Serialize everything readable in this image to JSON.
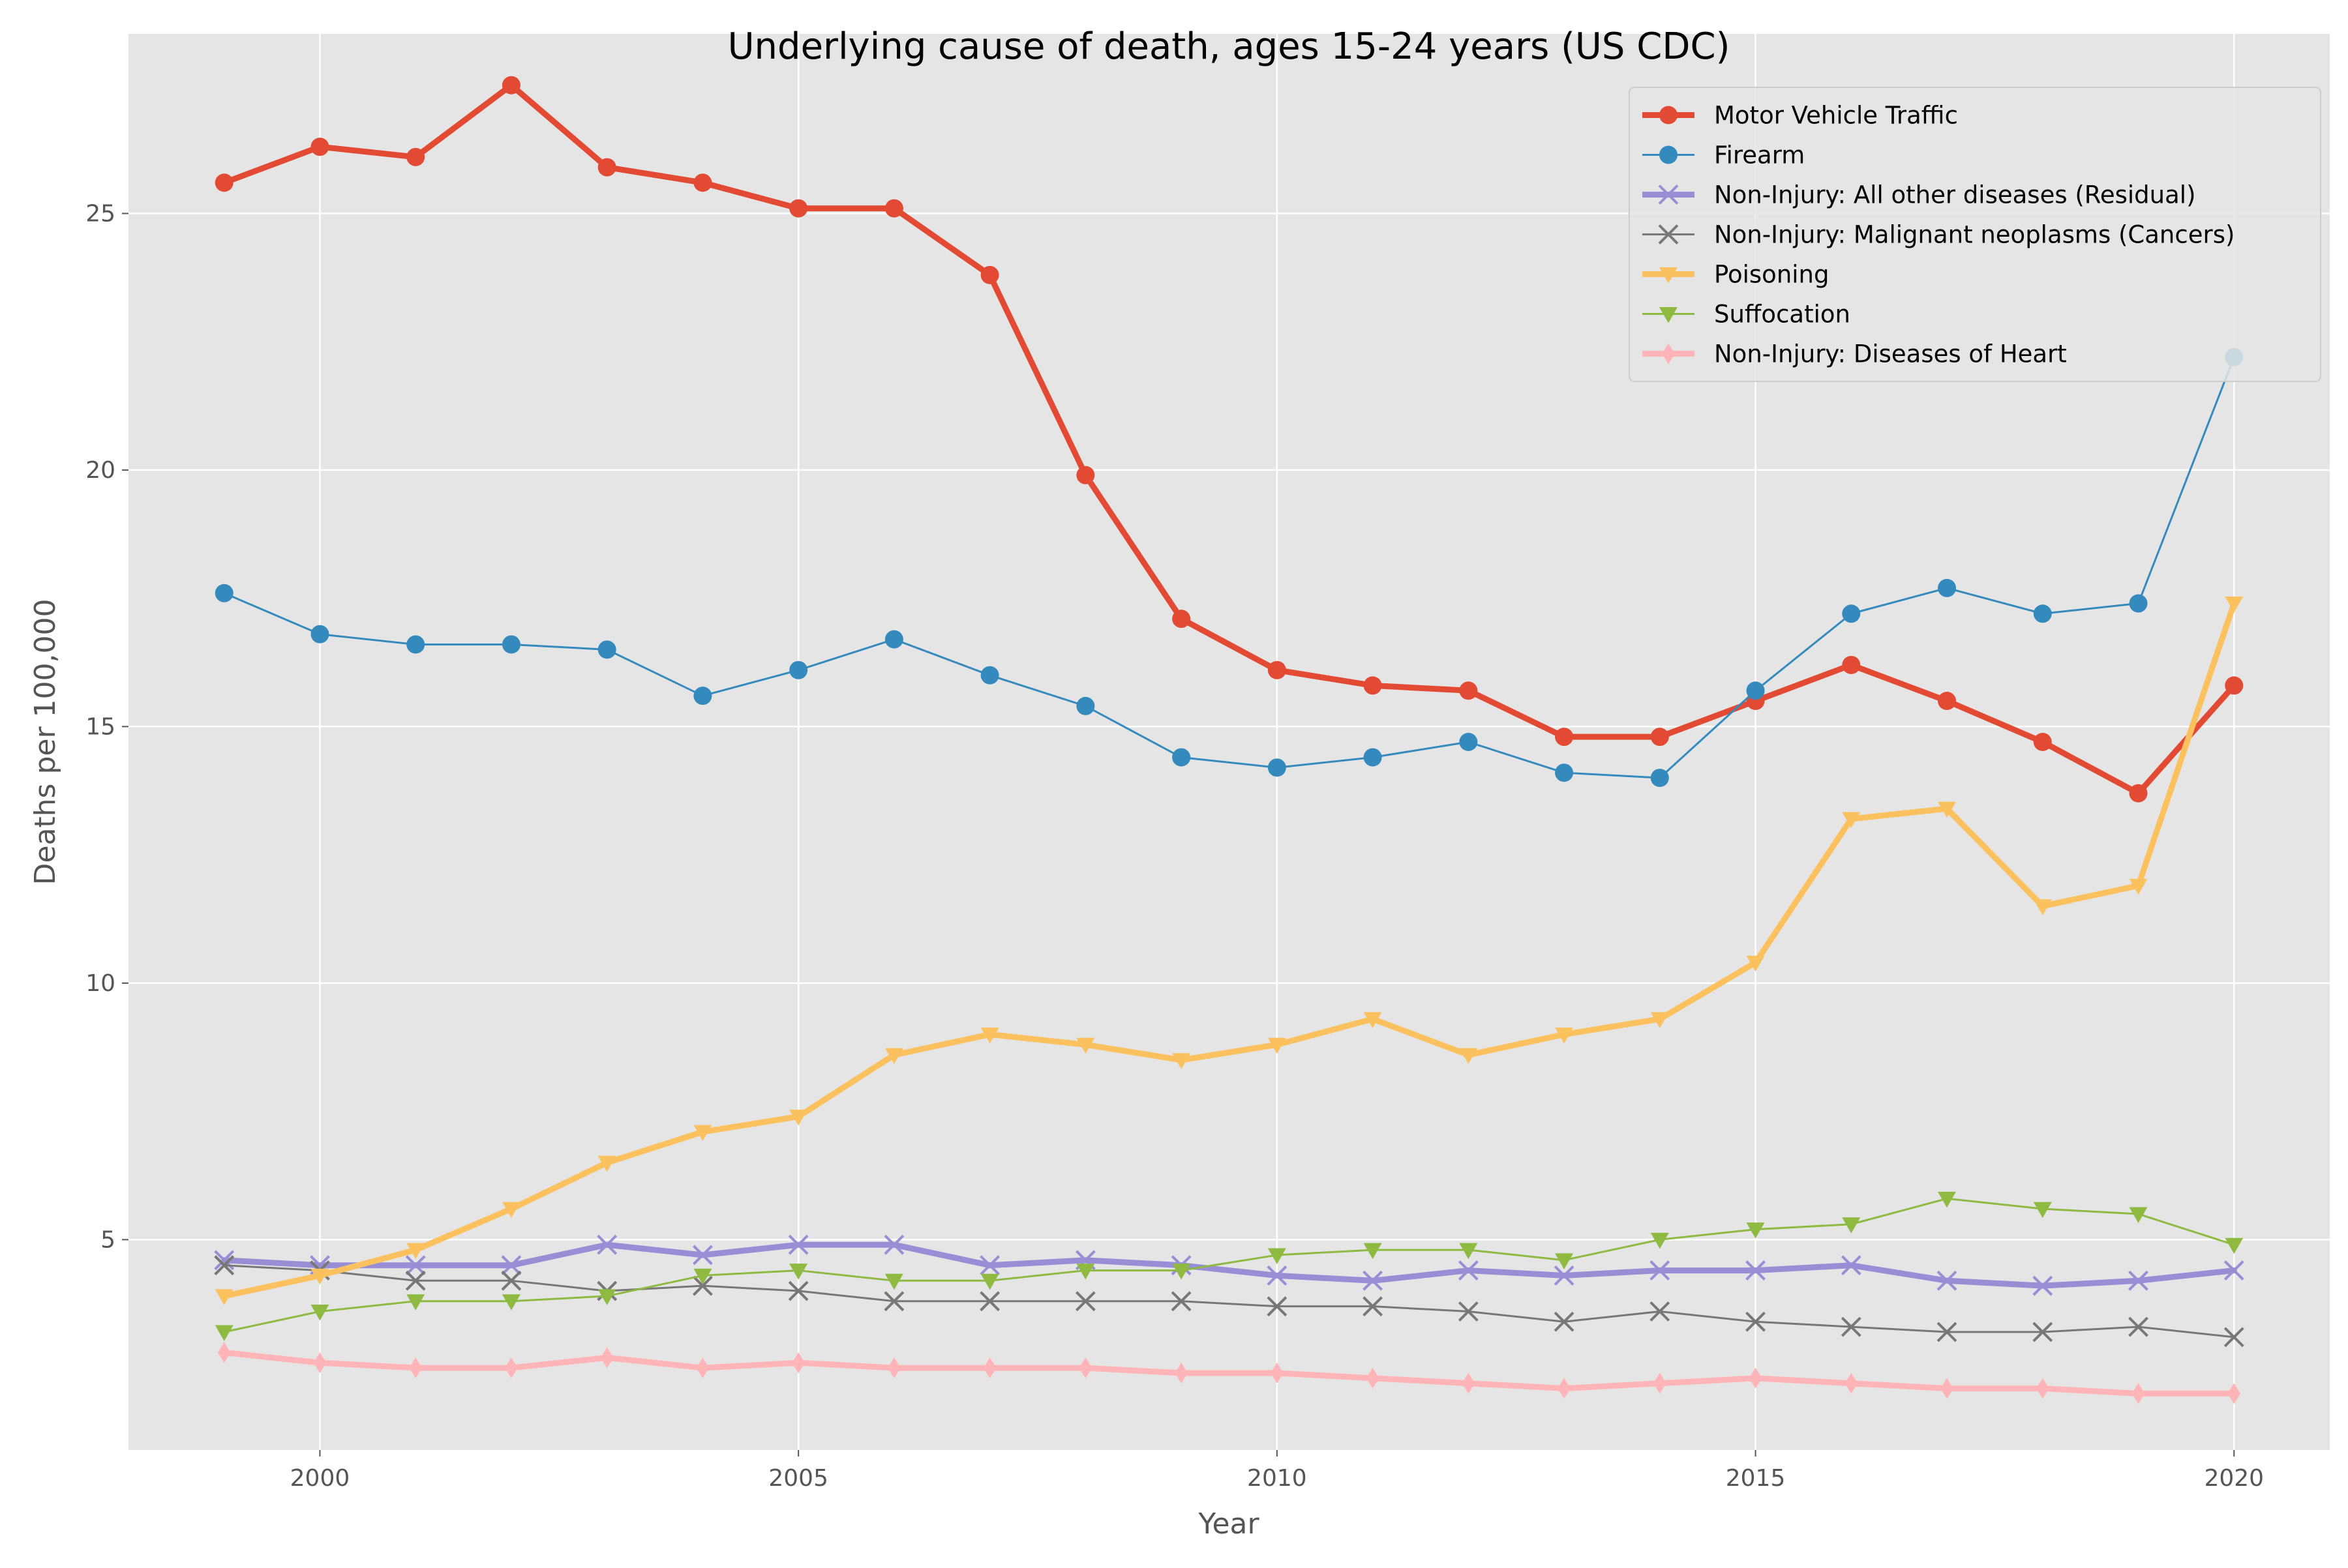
{
  "chart_data": {
    "type": "line",
    "title": "Underlying cause of death, ages 15-24 years (US CDC)",
    "xlabel": "Year",
    "ylabel": "Deaths per 100,000",
    "xlim": [
      1998,
      2021
    ],
    "ylim": [
      0.9,
      28.5
    ],
    "xticks": [
      2000,
      2005,
      2010,
      2015,
      2020
    ],
    "yticks": [
      5,
      10,
      15,
      20,
      25
    ],
    "grid": true,
    "legend_position": "top-right",
    "x": [
      1999,
      2000,
      2001,
      2002,
      2003,
      2004,
      2005,
      2006,
      2007,
      2008,
      2009,
      2010,
      2011,
      2012,
      2013,
      2014,
      2015,
      2016,
      2017,
      2018,
      2019,
      2020
    ],
    "series": [
      {
        "name": "Motor Vehicle Traffic",
        "color": "#E24A33",
        "marker": "circle",
        "thick": true,
        "values": [
          25.6,
          26.3,
          26.1,
          27.5,
          25.9,
          25.6,
          25.1,
          25.1,
          23.8,
          19.9,
          17.1,
          16.1,
          15.8,
          15.7,
          14.8,
          14.8,
          15.5,
          16.2,
          15.5,
          14.7,
          13.7,
          15.8
        ]
      },
      {
        "name": "Firearm",
        "color": "#348ABD",
        "marker": "circle",
        "thick": false,
        "values": [
          17.6,
          16.8,
          16.6,
          16.6,
          16.5,
          15.6,
          16.1,
          16.7,
          16.0,
          15.4,
          14.4,
          14.2,
          14.4,
          14.7,
          14.1,
          14.0,
          15.7,
          17.2,
          17.7,
          17.2,
          17.4,
          22.2
        ]
      },
      {
        "name": "Non-Injury: All other diseases (Residual)",
        "color": "#988ED5",
        "marker": "x",
        "thick": true,
        "values": [
          4.6,
          4.5,
          4.5,
          4.5,
          4.9,
          4.7,
          4.9,
          4.9,
          4.5,
          4.6,
          4.5,
          4.3,
          4.2,
          4.4,
          4.3,
          4.4,
          4.4,
          4.5,
          4.2,
          4.1,
          4.2,
          4.4
        ]
      },
      {
        "name": "Non-Injury: Malignant neoplasms (Cancers)",
        "color": "#777777",
        "marker": "x",
        "thick": false,
        "values": [
          4.5,
          4.4,
          4.2,
          4.2,
          4.0,
          4.1,
          4.0,
          3.8,
          3.8,
          3.8,
          3.8,
          3.7,
          3.7,
          3.6,
          3.4,
          3.6,
          3.4,
          3.3,
          3.2,
          3.2,
          3.3,
          3.1
        ]
      },
      {
        "name": "Poisoning",
        "color": "#FBC15E",
        "marker": "triangle-down",
        "thick": true,
        "values": [
          3.9,
          4.3,
          4.8,
          5.6,
          6.5,
          7.1,
          7.4,
          8.6,
          9.0,
          8.8,
          8.5,
          8.8,
          9.3,
          8.6,
          9.0,
          9.3,
          10.4,
          13.2,
          13.4,
          11.5,
          11.9,
          17.4
        ]
      },
      {
        "name": "Suffocation",
        "color": "#8EBA42",
        "marker": "triangle-down",
        "thick": false,
        "values": [
          3.2,
          3.6,
          3.8,
          3.8,
          3.9,
          4.3,
          4.4,
          4.2,
          4.2,
          4.4,
          4.4,
          4.7,
          4.8,
          4.8,
          4.6,
          5.0,
          5.2,
          5.3,
          5.8,
          5.6,
          5.5,
          4.9
        ]
      },
      {
        "name": "Non-Injury: Diseases of Heart",
        "color": "#FFB5B8",
        "marker": "diamond",
        "thick": true,
        "values": [
          2.8,
          2.6,
          2.5,
          2.5,
          2.7,
          2.5,
          2.6,
          2.5,
          2.5,
          2.5,
          2.4,
          2.4,
          2.3,
          2.2,
          2.1,
          2.2,
          2.3,
          2.2,
          2.1,
          2.1,
          2.0,
          2.0
        ]
      }
    ]
  }
}
